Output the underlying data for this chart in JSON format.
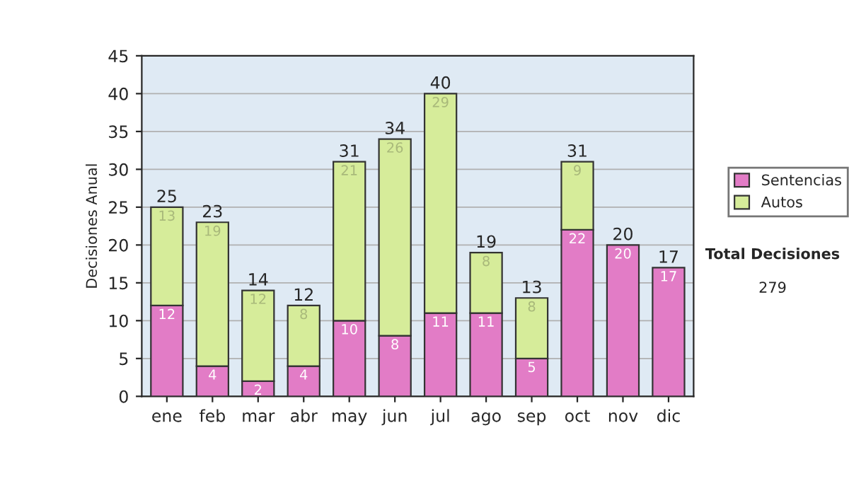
{
  "chart_data": {
    "type": "bar",
    "stacked": true,
    "ylabel": "Decisiones Anual",
    "categories": [
      "ene",
      "feb",
      "mar",
      "abr",
      "may",
      "jun",
      "jul",
      "ago",
      "sep",
      "oct",
      "nov",
      "dic"
    ],
    "series": [
      {
        "name": "Sentencias",
        "color": "#e27cc6",
        "values": [
          12,
          4,
          2,
          4,
          10,
          8,
          11,
          11,
          5,
          22,
          20,
          17
        ]
      },
      {
        "name": "Autos",
        "color": "#d6ec9a",
        "values": [
          13,
          19,
          12,
          8,
          21,
          26,
          29,
          8,
          8,
          9,
          null,
          null
        ]
      }
    ],
    "totals": [
      "25",
      "23",
      "14",
      "12",
      "31",
      "34",
      "40",
      "19",
      "13",
      "31",
      "20",
      "17"
    ],
    "data_labels": true,
    "ylim": [
      0,
      45
    ],
    "yticks": [
      0,
      5,
      10,
      15,
      20,
      25,
      30,
      35,
      40,
      45
    ],
    "grid": "y",
    "legend": "right",
    "annotations": [
      "Total Decisiones",
      "279"
    ]
  }
}
